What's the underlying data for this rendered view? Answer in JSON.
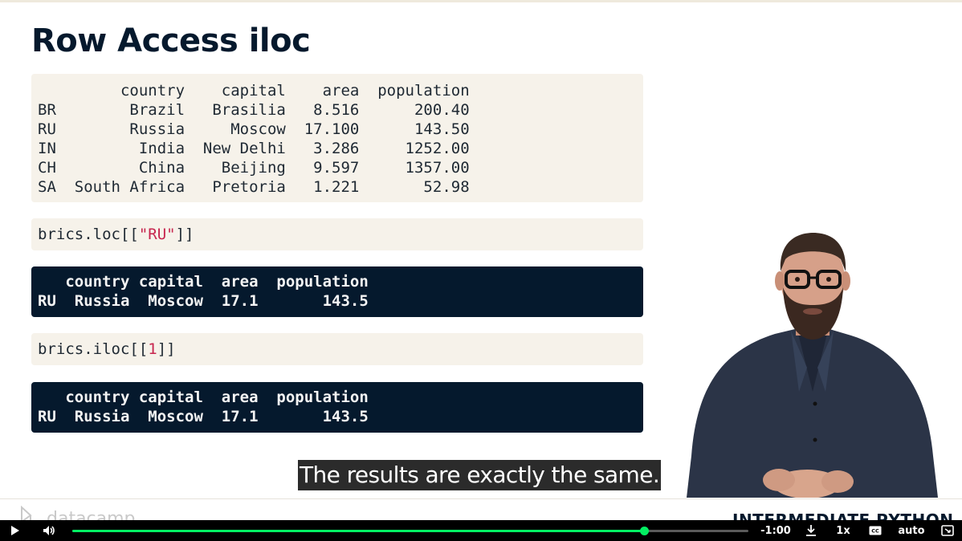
{
  "slide": {
    "title": "Row Access iloc",
    "dataframe_output": "         country    capital    area  population\nBR        Brazil   Brasilia   8.516      200.40\nRU        Russia     Moscow  17.100      143.50\nIN         India  New Delhi   3.286     1252.00\nCH         China    Beijing   9.597     1357.00\nSA  South Africa   Pretoria   1.221       52.98",
    "loc_code": {
      "prefix": "brics.loc[[",
      "arg": "\"RU\"",
      "suffix": "]]"
    },
    "loc_output": "   country capital  area  population\nRU  Russia  Moscow  17.1       143.5",
    "iloc_code": {
      "prefix": "brics.iloc[[",
      "arg": "1",
      "suffix": "]]"
    },
    "iloc_output": "   country capital  area  population\nRU  Russia  Moscow  17.1       143.5"
  },
  "subtitle": "The results are exactly the same.",
  "footer": {
    "logo_text": "datacamp",
    "course_title": "INTERMEDIATE PYTHON"
  },
  "player": {
    "progress": 0.846,
    "time_remaining": "-1:00",
    "speed": "1x",
    "quality": "auto",
    "icons": {
      "play": "play-icon",
      "volume": "volume-icon",
      "download": "download-icon",
      "captions": "captions-icon",
      "fullscreen": "fullscreen-icon"
    },
    "accent_color": "#03ef62"
  }
}
